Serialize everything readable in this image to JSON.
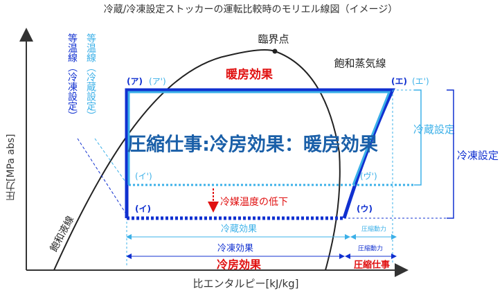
{
  "title": "冷蔵/冷凍設定ストッカーの運転比較時のモリエル線図（イメージ）",
  "axes": {
    "y": "圧力[MPa abs]",
    "x": "比エンタルピー[kJ/kg]"
  },
  "curves": {
    "critical_point": "臨界点",
    "saturated_vapor": "飽和蒸気線",
    "saturated_liquid": "飽和液線"
  },
  "isotherms": {
    "freeze": "等温線（冷凍設定）",
    "chill": "等温線（冷蔵設定）"
  },
  "points": {
    "a": "(ア)",
    "a2": "(ア')",
    "e": "(エ)",
    "e2": "(エ')",
    "i2": "(イ')",
    "u2": "(ヴ')",
    "i": "(イ)",
    "u": "(ウ)"
  },
  "heating_effect": "暖房効果",
  "headline": "圧縮仕事:冷房効果：暖房効果",
  "refrigerant_temp_drop": "冷媒温度の低下",
  "brackets": {
    "chill": "冷蔵設定",
    "freeze": "冷凍設定"
  },
  "dimensions": {
    "chill_effect": "冷蔵効果",
    "chill_power": "圧縮動力",
    "freeze_effect": "冷凍効果",
    "freeze_power": "圧縮動力",
    "cooling_effect": "冷房効果",
    "compression_work": "圧縮仕事"
  }
}
